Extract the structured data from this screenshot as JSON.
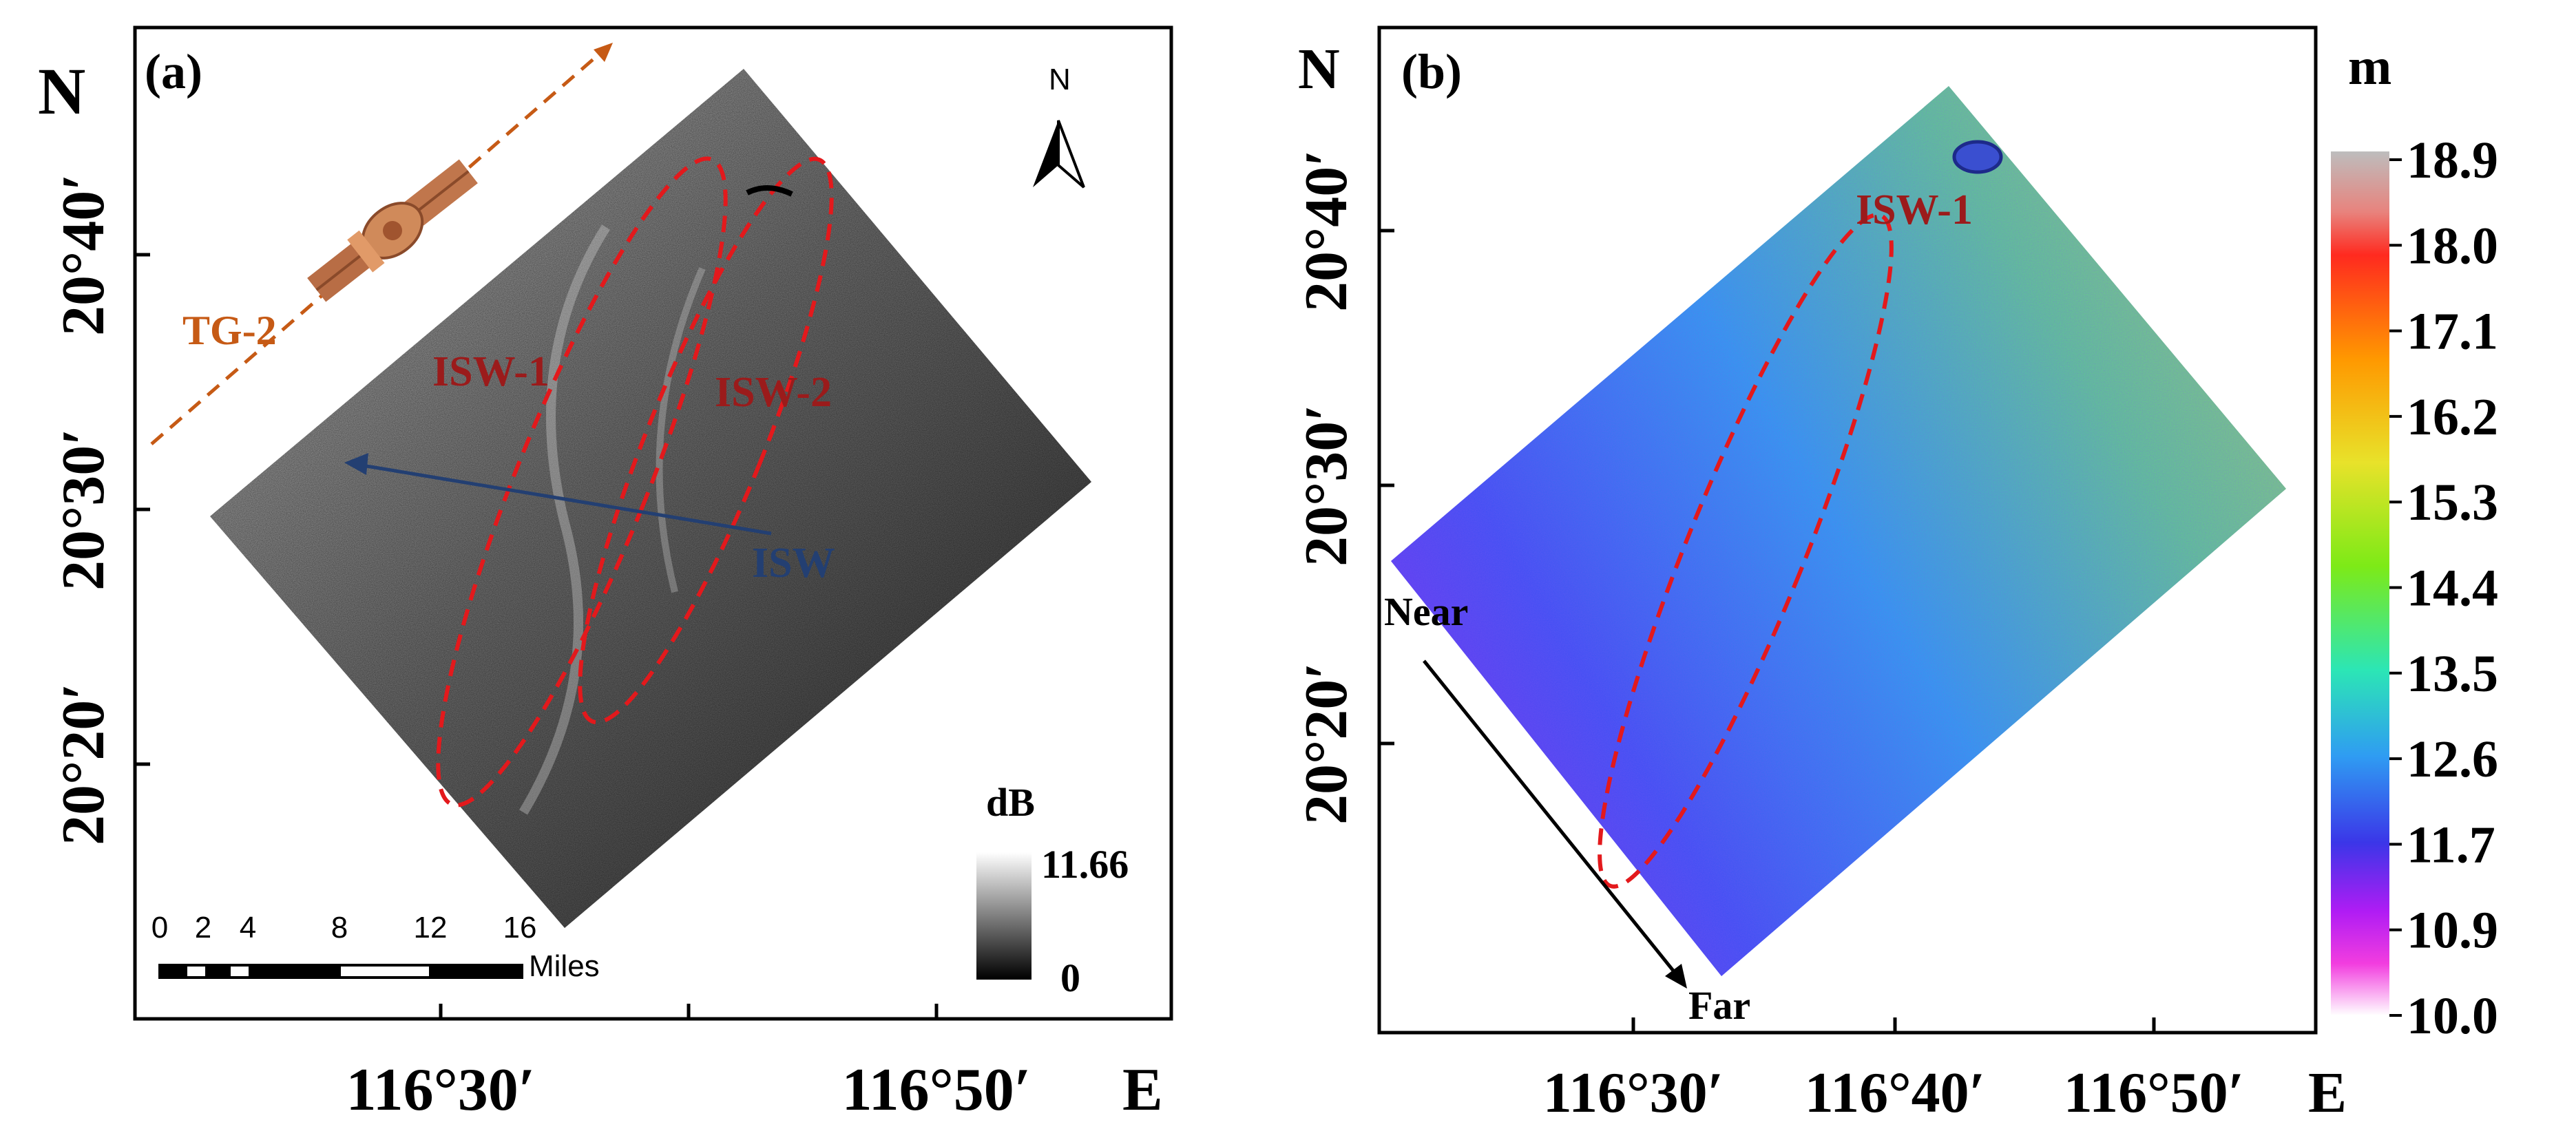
{
  "panel_a": {
    "label": "(a)",
    "north_letter": "N",
    "lat_labels": [
      "20°40′",
      "20°30′",
      "20°20′"
    ],
    "lon_labels": [
      "116°30′",
      "116°50′"
    ],
    "east_letter": "E",
    "satellite_track_label": "TG-2",
    "features": {
      "isw1": "ISW-1",
      "isw2": "ISW-2",
      "isw_arrow": "ISW"
    },
    "north_arrow_label": "N",
    "scale_bar": {
      "ticks": [
        "0",
        "2",
        "4",
        "8",
        "12",
        "16"
      ],
      "unit": "Miles"
    },
    "colorbar": {
      "unit": "dB",
      "max": "11.66",
      "min": "0"
    }
  },
  "panel_b": {
    "label": "(b)",
    "north_letter": "N",
    "lat_labels": [
      "20°40′",
      "20°30′",
      "20°20′"
    ],
    "lon_labels": [
      "116°30′",
      "116°40′",
      "116°50′"
    ],
    "east_letter": "E",
    "feature": "ISW-1",
    "range_labels": {
      "near": "Near",
      "far": "Far"
    },
    "colorbar": {
      "unit": "m",
      "ticks": [
        "18.9",
        "18.0",
        "17.1",
        "16.2",
        "15.3",
        "14.4",
        "13.5",
        "12.6",
        "11.7",
        "10.9",
        "10.0"
      ]
    }
  },
  "colors": {
    "isw_outline": "#e3191c",
    "isw_arrow": "#233f72",
    "satellite_track": "#c65a15",
    "feature_text": "#9b1b1b"
  }
}
